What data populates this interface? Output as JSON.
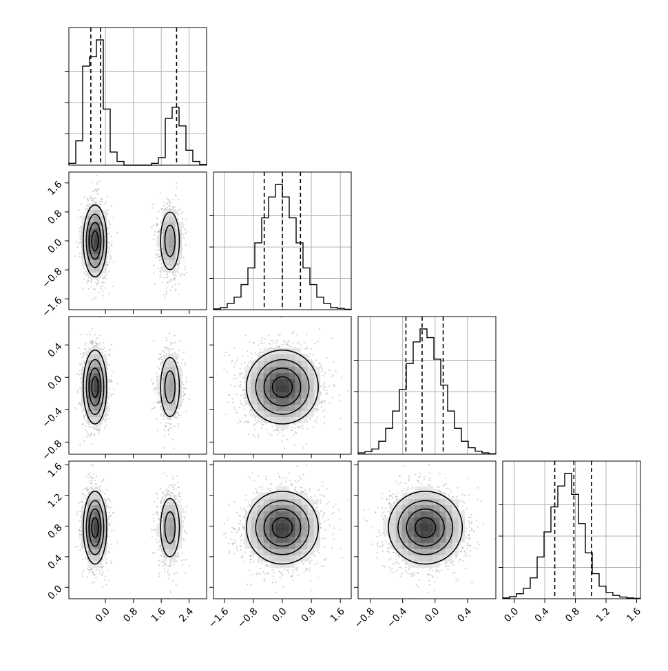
{
  "chart_data": {
    "type": "corner",
    "n_params": 4,
    "grid": true,
    "colors": {
      "line": "#000000",
      "grid": "#b0b0b0",
      "points": "#9a9a9a"
    },
    "ticks": [
      [
        "0.0",
        "0.8",
        "1.6",
        "2.4"
      ],
      [
        "−1.6",
        "−0.8",
        "0.0",
        "0.8",
        "1.6"
      ],
      [
        "−0.8",
        "−0.4",
        "0.0",
        "0.4"
      ],
      [
        "0.0",
        "0.4",
        "0.8",
        "1.2",
        "1.6"
      ]
    ],
    "tick_values": [
      [
        0.0,
        0.8,
        1.6,
        2.4
      ],
      [
        -1.6,
        -0.8,
        0.0,
        0.8,
        1.6
      ],
      [
        -0.8,
        -0.4,
        0.0,
        0.4
      ],
      [
        0.0,
        0.4,
        0.8,
        1.2,
        1.6
      ]
    ],
    "ranges": [
      [
        -1.05,
        2.9
      ],
      [
        -1.9,
        1.9
      ],
      [
        -0.95,
        0.75
      ],
      [
        -0.15,
        1.65
      ]
    ],
    "quantiles": [
      [
        -0.42,
        -0.14,
        2.04
      ],
      [
        -0.5,
        0.0,
        0.5
      ],
      [
        -0.36,
        -0.16,
        0.1
      ],
      [
        0.53,
        0.78,
        1.01
      ]
    ],
    "histograms": [
      {
        "edges_start": -1.05,
        "bin_width": 0.1975,
        "counts": [
          0.5,
          6.5,
          26.5,
          29.0,
          33.5,
          15.0,
          3.5,
          1.0,
          0,
          0,
          0,
          0,
          0.5,
          2.0,
          12.5,
          15.5,
          10.5,
          4.0,
          1.0,
          0.2
        ]
      },
      {
        "edges_start": -1.9,
        "bin_width": 0.19,
        "counts": [
          0.2,
          0.5,
          1.5,
          3,
          6,
          10,
          16,
          22,
          27,
          30,
          27,
          22,
          16,
          10,
          6,
          3,
          1.5,
          0.5,
          0.3,
          0.1
        ]
      },
      {
        "edges_start": -0.95,
        "bin_width": 0.085,
        "counts": [
          0.3,
          0.6,
          1.2,
          3,
          6,
          10,
          15,
          21,
          26,
          29,
          27,
          22,
          16,
          10,
          6,
          3,
          1.5,
          0.7,
          0.3,
          0.1
        ]
      },
      {
        "edges_start": -0.15,
        "bin_width": 0.09,
        "counts": [
          0.2,
          0.5,
          1.2,
          2.5,
          5,
          10,
          16,
          22,
          27,
          30,
          25,
          18,
          11,
          6,
          3,
          1.5,
          0.8,
          0.4,
          0.2,
          0.1
        ]
      }
    ],
    "components": [
      [
        {
          "mean": -0.3,
          "sd": 0.17,
          "weight": 0.67
        },
        {
          "mean": 1.85,
          "sd": 0.17,
          "weight": 0.33
        }
      ],
      [
        {
          "mean": 0.0,
          "sd": 0.5,
          "weight": 1
        }
      ],
      [
        {
          "mean": -0.12,
          "sd": 0.23,
          "weight": 1
        }
      ],
      [
        {
          "mean": 0.78,
          "sd": 0.24,
          "weight": 1
        }
      ]
    ]
  }
}
